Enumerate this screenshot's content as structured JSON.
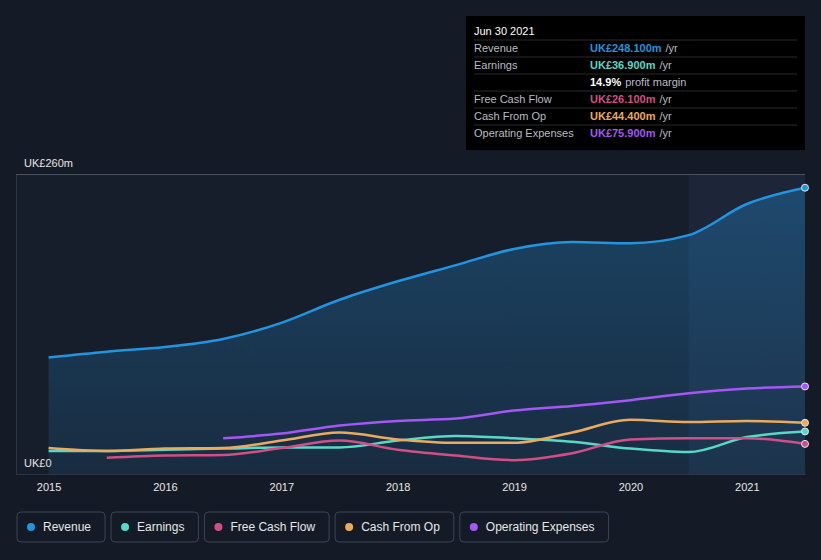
{
  "chart_data": {
    "type": "line",
    "x": [
      2015,
      2015.5,
      2016,
      2016.5,
      2017,
      2017.5,
      2018,
      2018.5,
      2019,
      2019.5,
      2020,
      2020.5,
      2021,
      2021.5
    ],
    "xlim": [
      2014.72,
      2021.5
    ],
    "xticks": [
      2015,
      2016,
      2017,
      2018,
      2019,
      2020,
      2021
    ],
    "ylim": [
      0,
      260
    ],
    "yticks": [
      {
        "value": 0,
        "label": "UK£0"
      },
      {
        "value": 260,
        "label": "UK£260m"
      }
    ],
    "grid": true,
    "legend": "bottom",
    "series": [
      {
        "name": "Revenue",
        "color": "#2394df",
        "type": "area",
        "values": [
          101,
          106,
          110,
          117,
          131,
          151,
          167,
          181,
          195,
          201,
          200,
          207,
          234,
          248.1
        ]
      },
      {
        "name": "Earnings",
        "color": "#58d9c7",
        "values": [
          20,
          20,
          21,
          22,
          23,
          23,
          29,
          33,
          31,
          28,
          22,
          19,
          32,
          36.9
        ]
      },
      {
        "name": "Free Cash Flow",
        "color": "#d14f86",
        "values": [
          null,
          14,
          16,
          16.5,
          22.5,
          29,
          21,
          16,
          12,
          18,
          30,
          31,
          31,
          26.1
        ]
      },
      {
        "name": "Cash From Op",
        "color": "#ecaa5e",
        "values": [
          22.5,
          20,
          22,
          22.5,
          29,
          36,
          30,
          27,
          27,
          36,
          47,
          45,
          46,
          44.4
        ]
      },
      {
        "name": "Operating Expenses",
        "color": "#a457f2",
        "values": [
          null,
          null,
          null,
          31,
          35,
          42,
          46,
          48,
          55,
          59,
          64,
          70,
          74,
          75.9
        ]
      }
    ],
    "annotations": [
      {
        "title": "Jun 30 2021",
        "rows": [
          {
            "label": "Revenue",
            "value": "UK£248.100m",
            "unit": "/yr"
          },
          {
            "label": "Earnings",
            "value": "UK£36.900m",
            "unit": "/yr"
          },
          {
            "value": "14.9%",
            "unit": "profit margin"
          },
          {
            "label": "Free Cash Flow",
            "value": "UK£26.100m",
            "unit": "/yr"
          },
          {
            "label": "Cash From Op",
            "value": "UK£44.400m",
            "unit": "/yr"
          },
          {
            "label": "Operating Expenses",
            "value": "UK£75.900m",
            "unit": "/yr"
          }
        ]
      }
    ]
  }
}
